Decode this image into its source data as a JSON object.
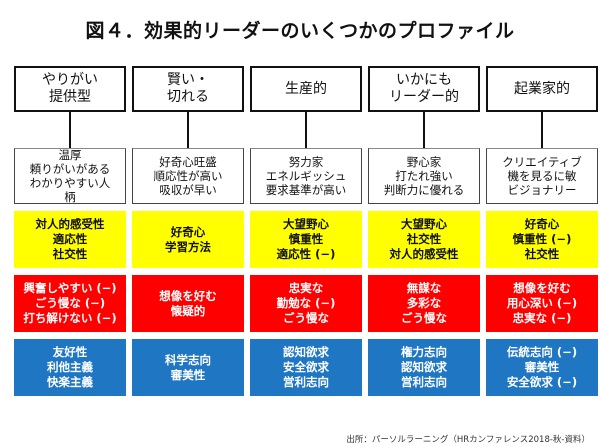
{
  "title": "図４．効果的リーダーのいくつかのプロファイル",
  "columns": [
    {
      "head": [
        "やりがい",
        "提供型"
      ],
      "desc": [
        "温厚",
        "頼りがいがある",
        "わかりやすい人",
        "柄"
      ],
      "yellow": [
        "対人的感受性",
        "適応性",
        "社交性"
      ],
      "red": [
        "興奮しやすい (−)",
        "ごう慢な (−)",
        "打ち解けない (−)"
      ],
      "blue": [
        "友好性",
        "利他主義",
        "快楽主義"
      ]
    },
    {
      "head": [
        "賢い・",
        "切れる"
      ],
      "desc": [
        "好奇心旺盛",
        "順応性が高い",
        "吸収が早い"
      ],
      "yellow": [
        "好奇心",
        "学習方法"
      ],
      "red": [
        "想像を好む",
        "懐疑的"
      ],
      "blue": [
        "科学志向",
        "審美性"
      ]
    },
    {
      "head": [
        "生産的"
      ],
      "desc": [
        "努力家",
        "エネルギッシュ",
        "要求基準が高い"
      ],
      "yellow": [
        "大望野心",
        "慎重性",
        "適応性 (−)"
      ],
      "red": [
        "忠実な",
        "勤勉な (−)",
        "ごう慢な"
      ],
      "blue": [
        "認知欲求",
        "安全欲求",
        "営利志向"
      ]
    },
    {
      "head": [
        "いかにも",
        "リーダー的"
      ],
      "desc": [
        "野心家",
        "打たれ強い",
        "判断力に優れる"
      ],
      "yellow": [
        "大望野心",
        "社交性",
        "対人的感受性"
      ],
      "red": [
        "無謀な",
        "多彩な",
        "ごう慢な"
      ],
      "blue": [
        "権力志向",
        "認知欲求",
        "営利志向"
      ]
    },
    {
      "head": [
        "起業家的"
      ],
      "desc": [
        "クリエイティブ",
        "機を見るに敏",
        "ビジョナリー"
      ],
      "yellow": [
        "好奇心",
        "慎重性 (−)",
        "社交性"
      ],
      "red": [
        "想像を好む",
        "用心深い (−)",
        "忠実な (−)"
      ],
      "blue": [
        "伝統志向 (−)",
        "審美性",
        "安全欲求 (−)"
      ]
    }
  ],
  "source": "出所：パーソルラーニング（HRカンファレンス2018-秋-資料）",
  "colors": {
    "yellow": "#ffff00",
    "red": "#ff0000",
    "blue": "#1f77c4"
  }
}
